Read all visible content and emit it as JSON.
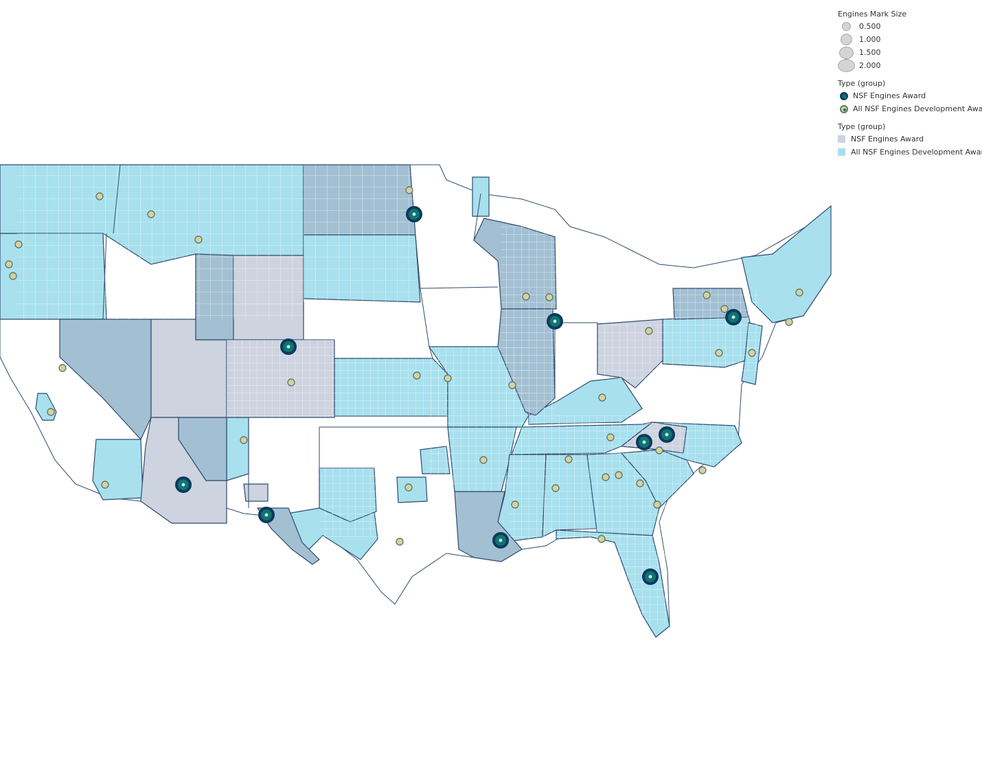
{
  "legend": {
    "size": {
      "title": "Engines Mark Size",
      "items": [
        {
          "label": "0.500",
          "size": 0.5
        },
        {
          "label": "1.000",
          "size": 1.0
        },
        {
          "label": "1.500",
          "size": 1.5
        },
        {
          "label": "2.000",
          "size": 2.0
        }
      ]
    },
    "marks": {
      "title": "Type (group)",
      "items": [
        {
          "label": "NSF Engines Award",
          "color": "#0e3a5c"
        },
        {
          "label": "All NSF Engines Development Awards",
          "color": "#c9b25a"
        }
      ]
    },
    "areas": {
      "title": "Type (group)",
      "items": [
        {
          "label": "NSF Engines Award",
          "color": "#cdd3df"
        },
        {
          "label": "All NSF Engines Development Awards",
          "color": "#a8e0ee"
        }
      ]
    }
  },
  "colors": {
    "engines_area": "#cdd3df",
    "development_area": "#a8e0ee",
    "overlap_area": "#a3c0d3",
    "state_border": "#2f4a6e",
    "county_line": "#ffffff",
    "marker_ring": "#0e3a5c",
    "marker_fill": "#0d7474",
    "dev_ring": "#c9b25a"
  }
}
